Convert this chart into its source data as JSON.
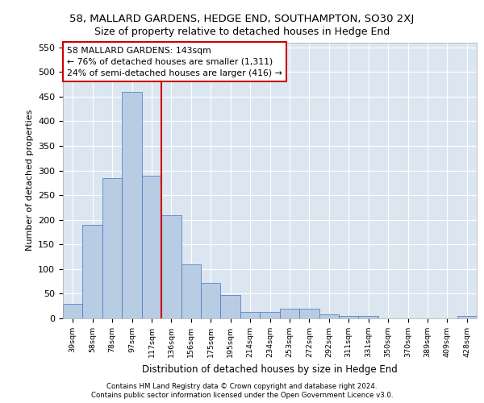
{
  "title_line1": "58, MALLARD GARDENS, HEDGE END, SOUTHAMPTON, SO30 2XJ",
  "title_line2": "Size of property relative to detached houses in Hedge End",
  "xlabel": "Distribution of detached houses by size in Hedge End",
  "ylabel": "Number of detached properties",
  "categories": [
    "39sqm",
    "58sqm",
    "78sqm",
    "97sqm",
    "117sqm",
    "136sqm",
    "156sqm",
    "175sqm",
    "195sqm",
    "214sqm",
    "234sqm",
    "253sqm",
    "272sqm",
    "292sqm",
    "311sqm",
    "331sqm",
    "350sqm",
    "370sqm",
    "389sqm",
    "409sqm",
    "428sqm"
  ],
  "values": [
    30,
    190,
    285,
    460,
    290,
    210,
    110,
    72,
    48,
    13,
    13,
    20,
    20,
    8,
    5,
    5,
    0,
    0,
    0,
    0,
    5
  ],
  "bar_color": "#b8cce4",
  "bar_edge_color": "#4472c4",
  "background_color": "#dce6f1",
  "grid_color": "#ffffff",
  "vline_x": 4.5,
  "vline_color": "#cc0000",
  "annotation_box_text": "58 MALLARD GARDENS: 143sqm\n← 76% of detached houses are smaller (1,311)\n24% of semi-detached houses are larger (416) →",
  "ylim": [
    0,
    560
  ],
  "yticks": [
    0,
    50,
    100,
    150,
    200,
    250,
    300,
    350,
    400,
    450,
    500,
    550
  ],
  "footer_line1": "Contains HM Land Registry data © Crown copyright and database right 2024.",
  "footer_line2": "Contains public sector information licensed under the Open Government Licence v3.0."
}
